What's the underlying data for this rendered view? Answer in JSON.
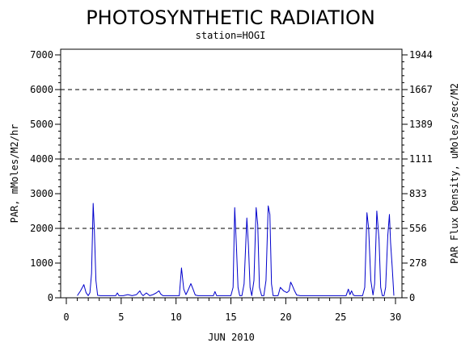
{
  "chart_data": {
    "type": "line",
    "title": "PHOTOSYNTHETIC RADIATION",
    "subtitle": "station=HOGI",
    "xlabel": "JUN 2010",
    "ylabel_left": "PAR, mMoles/M2/hr",
    "ylabel_right": "PAR Flux Density, uMoles/sec/M2",
    "xlim": [
      0,
      30
    ],
    "ylim": [
      0,
      7000
    ],
    "x_ticks": [
      "0",
      "5",
      "10",
      "15",
      "20",
      "25",
      "30"
    ],
    "y_ticks_left": [
      "0",
      "1000",
      "2000",
      "3000",
      "4000",
      "5000",
      "6000",
      "7000"
    ],
    "y_ticks_right": [
      "0",
      "278",
      "556",
      "833",
      "1111",
      "1389",
      "1667",
      "1944"
    ],
    "grid": "dashed horizontal at 2000, 4000, 6000",
    "series_color": "#0000cc",
    "series": [
      {
        "x": [
          1.0,
          1.3,
          1.6,
          1.8,
          2.0,
          2.15,
          2.3,
          2.45,
          2.55,
          2.7,
          2.85,
          3.1,
          3.5,
          4.0,
          4.5,
          4.65,
          4.8,
          5.2,
          5.6,
          6.0,
          6.4,
          6.7,
          6.85,
          7.0,
          7.3,
          7.6,
          7.9,
          8.2,
          8.45,
          8.6,
          8.8,
          9.0,
          9.5,
          10.0,
          10.3,
          10.5,
          10.7,
          10.9,
          11.1,
          11.35,
          11.55,
          11.75,
          12.0,
          12.5,
          13.0,
          13.4,
          13.55,
          13.7,
          14.0,
          14.5,
          15.0,
          15.2,
          15.35,
          15.5,
          15.65,
          15.8,
          16.0,
          16.2,
          16.45,
          16.6,
          16.75,
          16.9,
          17.1,
          17.3,
          17.45,
          17.6,
          17.8,
          18.0,
          18.2,
          18.4,
          18.55,
          18.7,
          18.85,
          19.0,
          19.3,
          19.5,
          19.8,
          20.1,
          20.3,
          20.45,
          20.6,
          20.8,
          21.0,
          21.3,
          21.8,
          22.5,
          23.5,
          24.5,
          25.5,
          25.7,
          25.85,
          26.0,
          26.15,
          26.3,
          26.6,
          27.0,
          27.2,
          27.4,
          27.55,
          27.75,
          27.95,
          28.1,
          28.3,
          28.5,
          28.65,
          28.8,
          28.95,
          29.1,
          29.3,
          29.45,
          29.55,
          29.7,
          29.85
        ],
        "values": [
          60,
          200,
          380,
          150,
          60,
          150,
          700,
          2720,
          2000,
          500,
          70,
          60,
          60,
          60,
          60,
          140,
          60,
          60,
          90,
          60,
          90,
          200,
          110,
          60,
          140,
          60,
          90,
          140,
          200,
          110,
          60,
          60,
          60,
          60,
          60,
          860,
          250,
          90,
          220,
          410,
          250,
          80,
          60,
          60,
          60,
          60,
          180,
          60,
          60,
          60,
          60,
          300,
          2600,
          1500,
          300,
          60,
          60,
          400,
          2300,
          1500,
          300,
          60,
          500,
          2600,
          2100,
          300,
          60,
          60,
          500,
          2650,
          2400,
          400,
          60,
          60,
          60,
          300,
          200,
          150,
          200,
          450,
          350,
          200,
          80,
          60,
          60,
          60,
          60,
          60,
          60,
          250,
          90,
          200,
          80,
          60,
          60,
          60,
          300,
          2450,
          2000,
          500,
          80,
          400,
          2500,
          1700,
          300,
          60,
          60,
          300,
          1800,
          2400,
          1600,
          900,
          60
        ]
      }
    ]
  }
}
